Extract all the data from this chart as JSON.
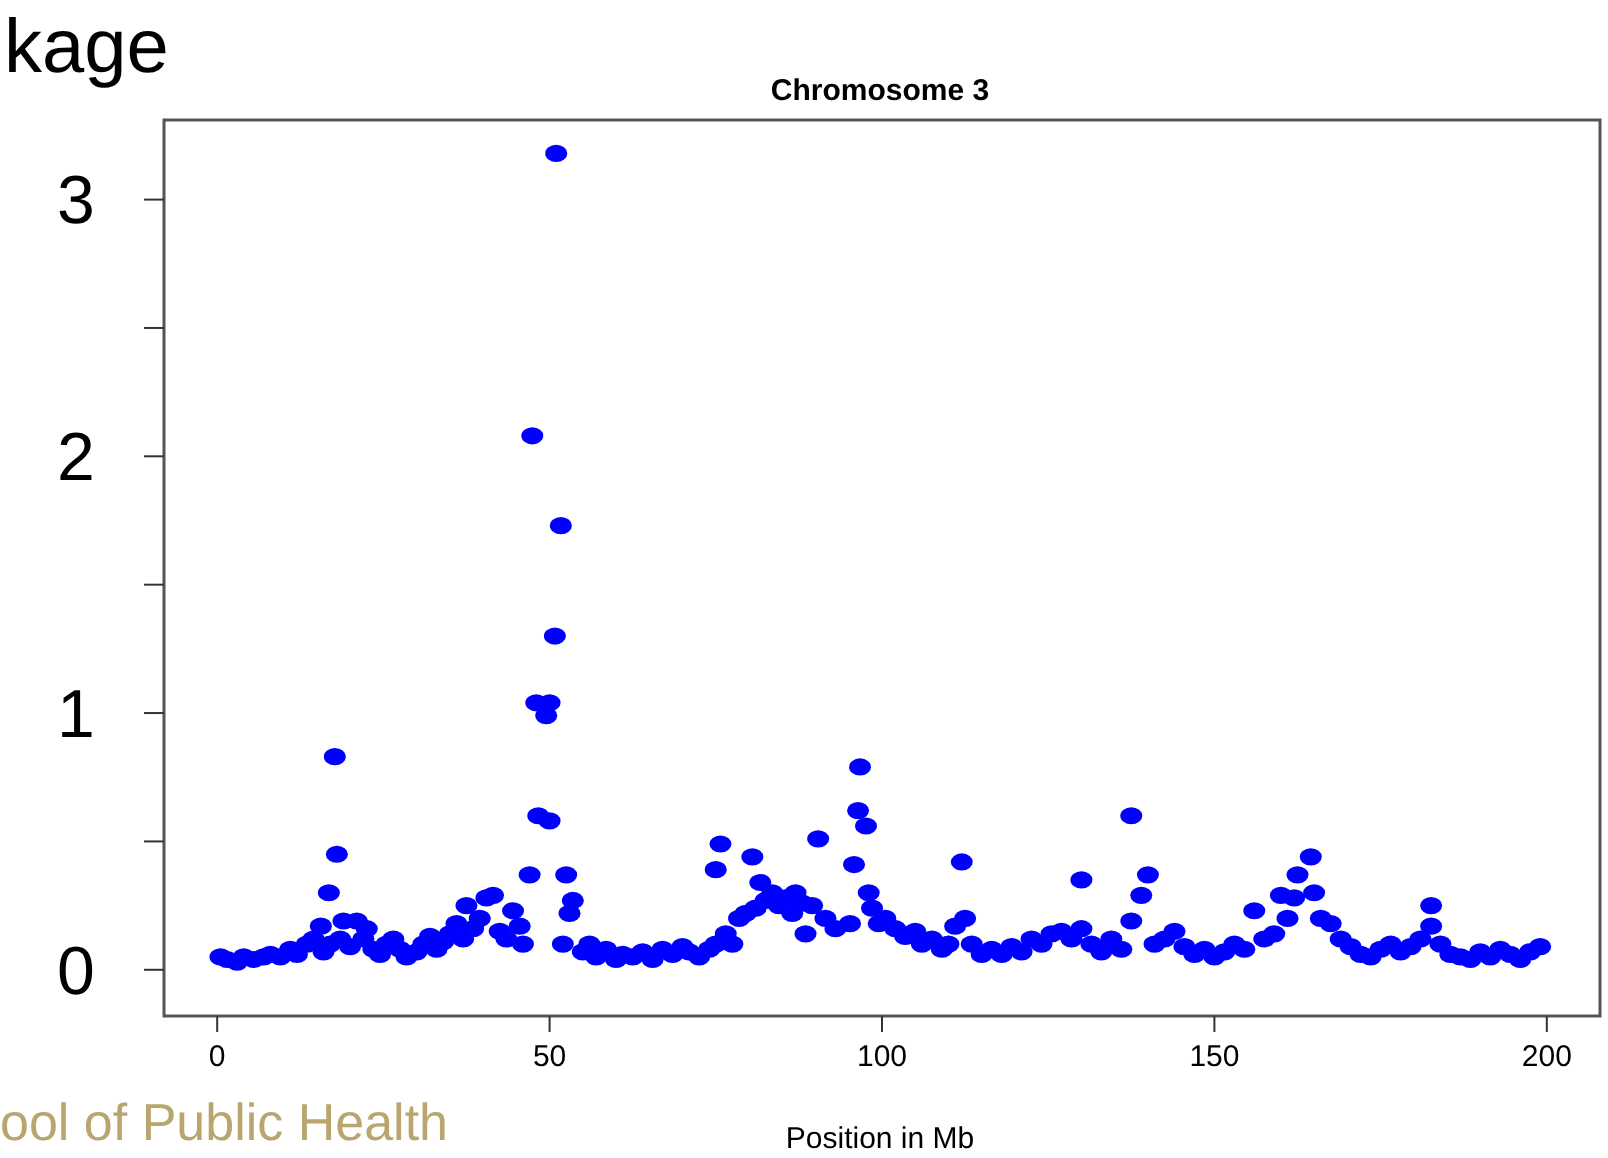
{
  "chart_data": {
    "type": "scatter",
    "title": "Chromosome 3",
    "xlabel": "Position in Mb",
    "marker": "circle",
    "xlim": [
      -8,
      208
    ],
    "ylim": [
      -0.18,
      3.31
    ],
    "xticks": [
      0,
      50,
      100,
      150,
      200
    ],
    "yticks": [
      0,
      {
        "value": 0.5,
        "label": null
      },
      1,
      {
        "value": 1.5,
        "label": null
      },
      2,
      {
        "value": 2.5,
        "label": null
      },
      3
    ],
    "annotations": [
      "kage",
      "ool of Public Health"
    ],
    "series": [
      {
        "color": "#0000ff",
        "x": [
          0.5,
          1.5,
          3,
          4,
          5.5,
          7,
          8,
          9.5,
          11,
          12,
          13.5,
          14.5,
          15.6,
          16,
          16.8,
          17,
          17.7,
          18,
          18.5,
          19,
          20,
          21,
          22,
          22.5,
          23.5,
          24.5,
          25.5,
          26.5,
          27.5,
          28.5,
          30,
          31,
          32,
          33,
          34,
          35,
          36,
          37,
          37.5,
          38.5,
          39.5,
          40.5,
          41.5,
          42.5,
          43.5,
          44.5,
          45.5,
          46,
          47,
          47.4,
          48,
          48.3,
          49.5,
          50,
          50,
          50.8,
          51,
          51.7,
          52.5,
          53,
          52,
          53.5,
          55,
          56,
          57,
          58.5,
          60,
          61,
          62.5,
          64,
          65.5,
          67,
          68.5,
          70,
          71,
          72.5,
          74,
          75,
          75,
          75.7,
          76.5,
          77.5,
          78.5,
          79.5,
          80.5,
          81.7,
          81,
          82.5,
          83.5,
          84.5,
          85.5,
          86.5,
          87,
          88,
          88.5,
          89.5,
          90.4,
          91.5,
          93,
          95.2,
          95.8,
          96.4,
          96.7,
          97.6,
          98,
          98.5,
          99.5,
          100.5,
          102,
          103.5,
          105,
          106,
          107.5,
          109,
          110,
          111,
          112,
          112.5,
          113.5,
          115,
          116.5,
          118,
          119.5,
          121,
          122.5,
          124,
          125.5,
          127,
          128.5,
          130,
          130,
          131.5,
          133,
          134.5,
          136,
          137.5,
          137.5,
          139,
          140,
          141,
          142.5,
          144,
          145.5,
          147,
          148.5,
          150,
          151.5,
          153,
          154.5,
          156,
          157.5,
          159,
          160,
          161,
          162,
          162.5,
          164.5,
          165,
          166,
          167.5,
          169,
          170.5,
          172,
          173.5,
          175,
          176.5,
          178,
          179.5,
          181,
          182.6,
          182.6,
          184,
          185.5,
          187,
          188.5,
          190,
          191.5,
          193,
          194.5,
          196,
          197.5,
          199
        ],
        "values": [
          0.05,
          0.04,
          0.03,
          0.05,
          0.04,
          0.05,
          0.06,
          0.05,
          0.08,
          0.06,
          0.1,
          0.12,
          0.17,
          0.07,
          0.3,
          0.1,
          0.83,
          0.45,
          0.12,
          0.19,
          0.09,
          0.19,
          0.12,
          0.16,
          0.08,
          0.06,
          0.1,
          0.12,
          0.08,
          0.05,
          0.07,
          0.1,
          0.13,
          0.08,
          0.11,
          0.14,
          0.18,
          0.12,
          0.25,
          0.16,
          0.2,
          0.28,
          0.29,
          0.15,
          0.12,
          0.23,
          0.17,
          0.1,
          0.37,
          2.08,
          1.04,
          0.6,
          0.99,
          1.04,
          0.58,
          1.3,
          3.18,
          1.73,
          0.37,
          0.22,
          0.1,
          0.27,
          0.07,
          0.1,
          0.05,
          0.08,
          0.04,
          0.06,
          0.05,
          0.07,
          0.04,
          0.08,
          0.06,
          0.09,
          0.07,
          0.05,
          0.08,
          0.1,
          0.39,
          0.49,
          0.14,
          0.1,
          0.2,
          0.22,
          0.44,
          0.34,
          0.24,
          0.27,
          0.3,
          0.25,
          0.28,
          0.22,
          0.3,
          0.26,
          0.14,
          0.25,
          0.51,
          0.2,
          0.16,
          0.18,
          0.41,
          0.62,
          0.79,
          0.56,
          0.3,
          0.24,
          0.18,
          0.2,
          0.16,
          0.13,
          0.15,
          0.1,
          0.12,
          0.08,
          0.1,
          0.17,
          0.42,
          0.2,
          0.1,
          0.06,
          0.08,
          0.06,
          0.09,
          0.07,
          0.12,
          0.1,
          0.14,
          0.15,
          0.12,
          0.35,
          0.16,
          0.1,
          0.07,
          0.12,
          0.08,
          0.19,
          0.6,
          0.29,
          0.37,
          0.1,
          0.12,
          0.15,
          0.09,
          0.06,
          0.08,
          0.05,
          0.07,
          0.1,
          0.08,
          0.23,
          0.12,
          0.14,
          0.29,
          0.2,
          0.28,
          0.37,
          0.44,
          0.3,
          0.2,
          0.18,
          0.12,
          0.09,
          0.06,
          0.05,
          0.08,
          0.1,
          0.07,
          0.09,
          0.12,
          0.25,
          0.17,
          0.1,
          0.06,
          0.05,
          0.04,
          0.07,
          0.05,
          0.08,
          0.06,
          0.04,
          0.07,
          0.09
        ]
      }
    ]
  }
}
